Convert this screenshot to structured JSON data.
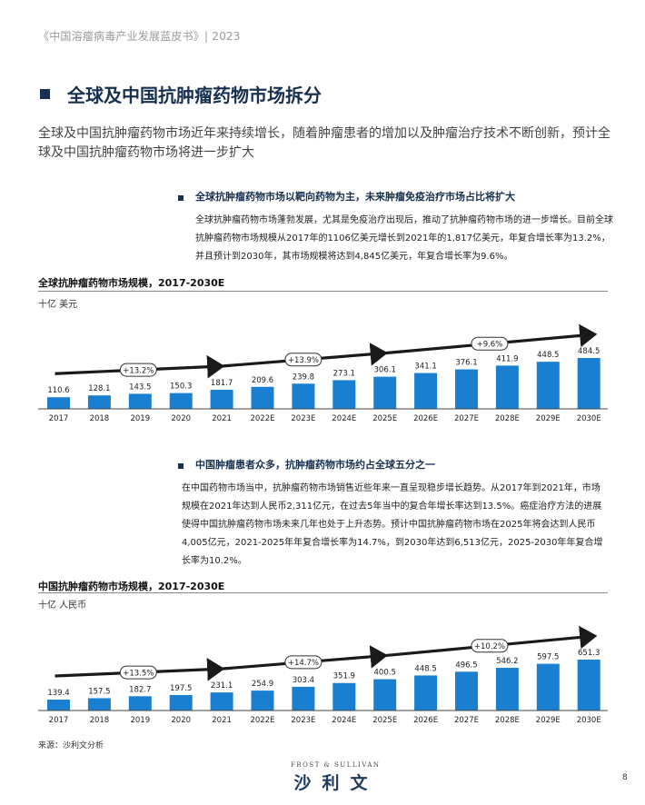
{
  "header": {
    "text": "《中国溶瘤病毒产业发展蓝皮书》| 2023"
  },
  "page_title": "全球及中国抗肿瘤药物市场拆分",
  "subtitle": "全球及中国抗肿瘤药物市场近年来持续增长，随着肿瘤患者的增加以及肿瘤治疗技术不断创新，预计全球及中国抗肿瘤药物市场将进一步扩大",
  "section1": {
    "title": "全球抗肿瘤药物市场以靶向药物为主，未来肿瘤免疫治疗市场占比将扩大",
    "paragraph": "全球抗肿瘤药物市场蓬勃发展，尤其是免疫治疗出现后，推动了抗肿瘤药物市场的进一步增长。目前全球抗肿瘤药物市场规模从2017年的1106亿美元增长到2021年的1,817亿美元，年复合增长率为13.2%，并且预计到2030年，其市场规模将达到4,845亿美元，年复合增长率为9.6%。"
  },
  "section2": {
    "title": "中国肿瘤患者众多，抗肿瘤药物市场约占全球五分之一",
    "paragraph": "在中国药物市场当中，抗肿瘤药物市场销售近些年来一直呈现稳步增长趋势。从2017年到2021年，市场规模在2021年达到人民币2,311亿元，在过去5年当中的复合年增长率达到13.5%。癌症治疗方法的进展使得中国抗肿瘤药物市场未来几年也处于上升态势。预计中国抗肿瘤药物市场在2025年将会达到人民币4,005亿元，2021-2025年年复合增长率为14.7%，到2030年达到6,513亿元，2025-2030年年复合增长率为10.2%。"
  },
  "colors": {
    "bar": "#1a7fd0",
    "title": "#17304f",
    "arrow": "#1a1a1a"
  },
  "chart_data": [
    {
      "type": "bar",
      "title": "全球抗肿瘤药物市场规模，2017-2030E",
      "ylabel": "十亿 美元",
      "categories": [
        "2017",
        "2018",
        "2019",
        "2020",
        "2021",
        "2022E",
        "2023E",
        "2024E",
        "2025E",
        "2026E",
        "2027E",
        "2028E",
        "2029E",
        "2030E"
      ],
      "values": [
        110.6,
        128.1,
        143.5,
        150.3,
        181.7,
        209.6,
        239.8,
        273.1,
        306.1,
        341.1,
        376.1,
        411.9,
        448.5,
        484.5
      ],
      "value_labels": [
        "110.6",
        "128.1",
        "143.5",
        "150.3",
        "181.7",
        "209.6",
        "239.8",
        "273.1",
        "306.1",
        "341.1",
        "376.1",
        "411.9",
        "448.5",
        "484.5"
      ],
      "cagr_labels": [
        "+13.2%",
        "+13.9%",
        "+9.6%"
      ],
      "ylim": [
        0,
        484.5
      ],
      "grid": false,
      "legend": "none"
    },
    {
      "type": "bar",
      "title": "中国抗肿瘤药物市场规模，2017-2030E",
      "ylabel": "十亿 人民币",
      "categories": [
        "2017",
        "2018",
        "2019",
        "2020",
        "2021",
        "2022E",
        "2023E",
        "2024E",
        "2025E",
        "2026E",
        "2027E",
        "2028E",
        "2029E",
        "2030E"
      ],
      "values": [
        139.4,
        157.5,
        182.7,
        197.5,
        231.1,
        254.9,
        303.4,
        351.9,
        400.5,
        448.5,
        496.5,
        546.2,
        597.5,
        651.3
      ],
      "value_labels": [
        "139.4",
        "157.5",
        "182.7",
        "197.5",
        "231.1",
        "254.9",
        "303.4",
        "351.9",
        "400.5",
        "448.5",
        "496.5",
        "546.2",
        "597.5",
        "651.3"
      ],
      "cagr_labels": [
        "+13.5%",
        "+14.7%",
        "+10.2%"
      ],
      "ylim": [
        0,
        651.3
      ],
      "grid": false,
      "legend": "none"
    }
  ],
  "source": "来源：沙利文分析",
  "logo": {
    "english": "FROST & SULLIVAN",
    "chinese": "沙利文"
  },
  "page_number": "8"
}
